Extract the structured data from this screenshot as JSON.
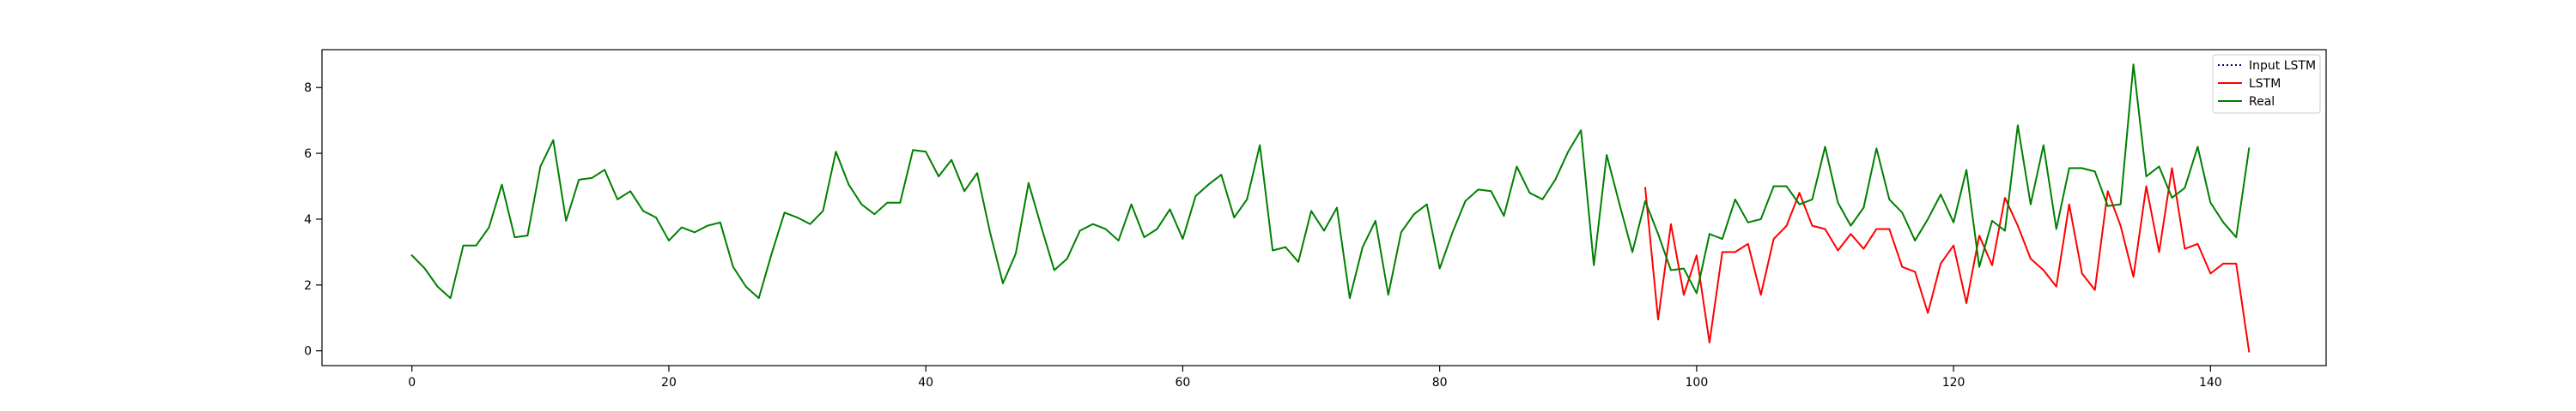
{
  "chart_data": {
    "type": "line",
    "title": "",
    "xlabel": "",
    "ylabel": "",
    "xlim": [
      -7,
      149
    ],
    "ylim": [
      -0.45,
      9.15
    ],
    "xticks": [
      0,
      20,
      40,
      60,
      80,
      100,
      120,
      140
    ],
    "yticks": [
      0,
      2,
      4,
      6,
      8
    ],
    "grid": false,
    "legend": {
      "position": "top-right",
      "entries": [
        "Input LSTM",
        "LSTM",
        "Real"
      ]
    },
    "series": [
      {
        "name": "Input LSTM",
        "color": "#000080",
        "linestyle": "dotted",
        "x": [],
        "values": []
      },
      {
        "name": "LSTM",
        "color": "#ff0000",
        "linestyle": "solid",
        "x_start": 96,
        "values": [
          4.95,
          0.95,
          3.85,
          1.7,
          2.9,
          0.25,
          3.0,
          3.0,
          3.25,
          1.7,
          3.4,
          3.8,
          4.8,
          3.8,
          3.7,
          3.05,
          3.55,
          3.1,
          3.7,
          3.7,
          2.55,
          2.4,
          1.15,
          2.65,
          3.2,
          1.45,
          3.5,
          2.6,
          4.65,
          3.8,
          2.8,
          2.45,
          1.95,
          4.45,
          2.35,
          1.85,
          4.85,
          3.8,
          2.25,
          5.0,
          3.0,
          5.55,
          3.1,
          3.25,
          2.35,
          2.65,
          2.65,
          -0.02
        ]
      },
      {
        "name": "Real",
        "color": "#008000",
        "linestyle": "solid",
        "x_start": 0,
        "values": [
          2.9,
          2.5,
          1.95,
          1.6,
          3.2,
          3.2,
          3.75,
          5.05,
          3.45,
          3.5,
          5.6,
          6.4,
          3.95,
          5.2,
          5.25,
          5.5,
          4.6,
          4.85,
          4.25,
          4.05,
          3.35,
          3.75,
          3.6,
          3.8,
          3.9,
          2.55,
          1.95,
          1.6,
          2.95,
          4.2,
          4.05,
          3.85,
          4.25,
          6.05,
          5.05,
          4.45,
          4.15,
          4.5,
          4.5,
          6.1,
          6.05,
          5.3,
          5.8,
          4.85,
          5.4,
          3.6,
          2.05,
          2.95,
          5.1,
          3.75,
          2.45,
          2.8,
          3.65,
          3.85,
          3.7,
          3.35,
          4.45,
          3.45,
          3.7,
          4.3,
          3.4,
          4.7,
          5.05,
          5.35,
          4.05,
          4.6,
          6.25,
          3.05,
          3.15,
          2.7,
          4.25,
          3.65,
          4.35,
          1.6,
          3.15,
          3.95,
          1.7,
          3.6,
          4.15,
          4.45,
          2.5,
          3.6,
          4.55,
          4.9,
          4.85,
          4.1,
          5.6,
          4.8,
          4.6,
          5.2,
          6.05,
          6.7,
          2.6,
          5.95,
          4.45,
          3.0,
          4.55,
          3.55,
          2.45,
          2.5,
          1.75,
          3.55,
          3.4,
          4.6,
          3.9,
          4.0,
          5.0,
          5.0,
          4.45,
          4.6,
          6.2,
          4.5,
          3.8,
          4.35,
          6.15,
          4.6,
          4.2,
          3.35,
          4.0,
          4.75,
          3.9,
          5.5,
          2.55,
          3.95,
          3.65,
          6.85,
          4.45,
          6.25,
          3.7,
          5.55,
          5.55,
          5.45,
          4.4,
          4.45,
          8.7,
          5.3,
          5.6,
          4.65,
          4.95,
          6.2,
          4.5,
          3.9,
          3.45,
          6.15
        ]
      }
    ]
  }
}
